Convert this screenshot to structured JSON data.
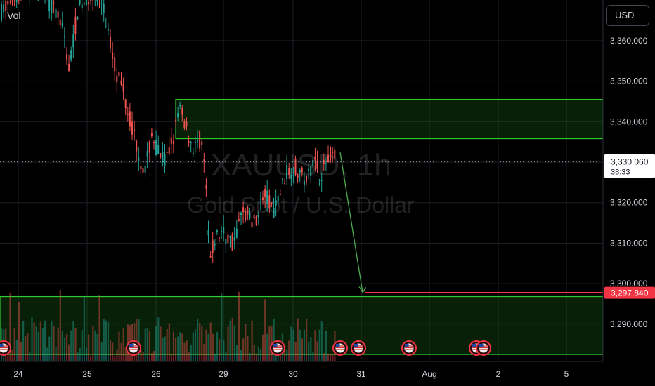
{
  "symbol": "XAUUSD, 1h",
  "description": "Gold Spot / U.S. Dollar",
  "currency_button": "USD",
  "vol_label": "Vol",
  "last_price": {
    "value": "3,330.060",
    "countdown": "38:33"
  },
  "target_price": {
    "value": "3,297.840"
  },
  "colors": {
    "up": "#26a69a",
    "down": "#ef5350",
    "zone": "#2eca2e",
    "arrow": "#4caf50",
    "target_line": "#f23645"
  },
  "chart_data": {
    "type": "candlestick",
    "symbol": "XAUUSD",
    "timeframe": "1h",
    "ylim": [
      3282,
      3370
    ],
    "y_ticks": [
      3290,
      3300,
      3310,
      3320,
      3330,
      3340,
      3350,
      3360
    ],
    "y_tick_labels": [
      "3,290.000",
      "3,300.000",
      "3,310.000",
      "3,320.000",
      "3,330.000",
      "3,340.000",
      "3,350.000",
      "3,360.000"
    ],
    "x_labels": [
      "24",
      "25",
      "26",
      "29",
      "30",
      "31",
      "Aug",
      "2",
      "5"
    ],
    "supply_zone": {
      "top": 3345.5,
      "bottom": 3335.8
    },
    "demand_zone": {
      "top": 3296.8,
      "bottom": 3282.5
    },
    "projection": {
      "from_price": 3331,
      "to_price": 3297.84
    },
    "last_price": 3330.06,
    "target_price": 3297.84,
    "event_markers": 8
  }
}
